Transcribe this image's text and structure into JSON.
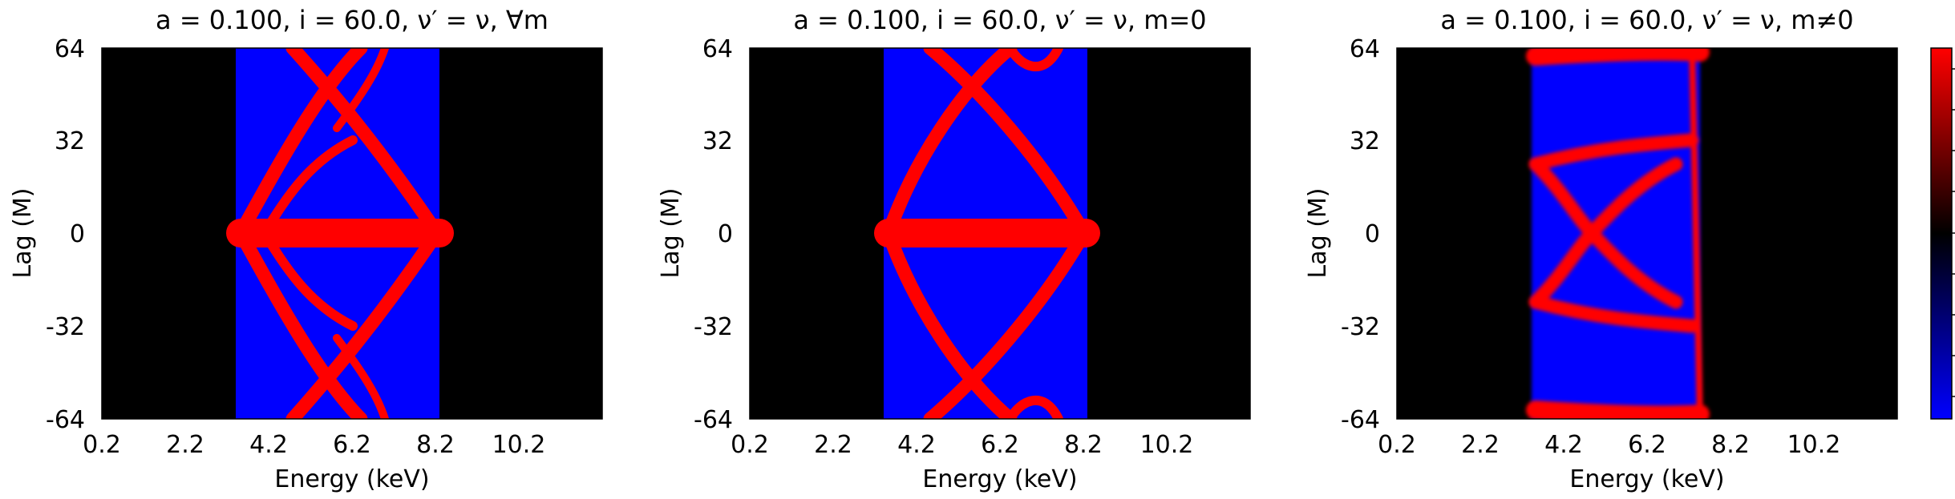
{
  "chart_data": [
    {
      "type": "heatmap",
      "title": "a = 0.100, i = 60.0, ν′ = ν, ∀m",
      "xlabel": "Energy (keV)",
      "ylabel": "Lag (M)",
      "xticks": [
        "0.2",
        "2.2",
        "4.2",
        "6.2",
        "8.2",
        "10.2"
      ],
      "yticks": [
        "64",
        "32",
        "0",
        "-32",
        "-64"
      ],
      "xlim": [
        0.2,
        12.2
      ],
      "ylim": [
        -64,
        64
      ],
      "background_color": "#000000",
      "band": {
        "x_range": [
          3.5,
          8.1
        ],
        "color": "#0000ff"
      },
      "features": [
        {
          "kind": "horizontal_lobe",
          "x_range": [
            3.5,
            8.1
          ],
          "y": 0,
          "thickness": 7,
          "color": "#ff0000"
        },
        {
          "kind": "crossing_arcs",
          "x_range": [
            3.6,
            7.6
          ],
          "y_range": [
            -64,
            64
          ],
          "apex_x": 5.9,
          "color": "#ff0000"
        },
        {
          "kind": "inner_arcs",
          "x_range": [
            4.0,
            7.0
          ],
          "y_peak": 32,
          "color": "#ff0000"
        }
      ]
    },
    {
      "type": "heatmap",
      "title": "a = 0.100, i = 60.0, ν′ = ν, m=0",
      "xlabel": "Energy (keV)",
      "ylabel": "Lag (M)",
      "xticks": [
        "0.2",
        "2.2",
        "4.2",
        "6.2",
        "8.2",
        "10.2"
      ],
      "yticks": [
        "64",
        "32",
        "0",
        "-32",
        "-64"
      ],
      "xlim": [
        0.2,
        12.2
      ],
      "ylim": [
        -64,
        64
      ],
      "background_color": "#000000",
      "band": {
        "x_range": [
          3.5,
          8.1
        ],
        "color": "#0000ff"
      },
      "features": [
        {
          "kind": "horizontal_lobe",
          "x_range": [
            3.5,
            8.1
          ],
          "y": 0,
          "thickness": 7,
          "color": "#ff0000"
        },
        {
          "kind": "crossing_arcs",
          "x_range": [
            3.6,
            8.0
          ],
          "y_range": [
            -64,
            64
          ],
          "apex_x": 5.9,
          "color": "#ff0000"
        }
      ]
    },
    {
      "type": "heatmap",
      "title": "a = 0.100, i = 60.0, ν′ = ν, m≠0",
      "xlabel": "Energy (keV)",
      "ylabel": "Lag (M)",
      "xticks": [
        "0.2",
        "2.2",
        "4.2",
        "6.2",
        "8.2",
        "10.2"
      ],
      "yticks": [
        "64",
        "32",
        "0",
        "-32",
        "-64"
      ],
      "xlim": [
        0.2,
        12.2
      ],
      "ylim": [
        -64,
        64
      ],
      "background_color": "#000000",
      "band": {
        "x_range": [
          3.5,
          7.3
        ],
        "color": "#0000ff"
      },
      "features": [
        {
          "kind": "x_crossing",
          "x_range": [
            3.7,
            7.0
          ],
          "y_range": [
            -32,
            32
          ],
          "cross_x": 4.2,
          "color": "#ff0000"
        },
        {
          "kind": "edge_bands",
          "y": [
            64,
            -64
          ],
          "color": "#ff0000"
        }
      ]
    }
  ],
  "colorbar": {
    "colors": [
      "#0000ff",
      "#000000",
      "#ff0000"
    ]
  }
}
